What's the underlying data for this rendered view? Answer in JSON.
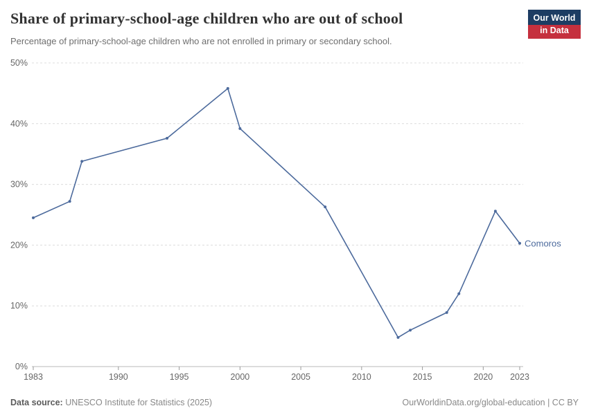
{
  "header": {
    "title": "Share of primary-school-age children who are out of school",
    "subtitle": "Percentage of primary-school-age children who are not enrolled in primary or secondary school."
  },
  "logo": {
    "line1": "Our World",
    "line2": "in Data",
    "bg_color": "#1d3d63",
    "accent_color": "#c5303e"
  },
  "chart_data": {
    "type": "line",
    "title": "Share of primary-school-age children who are out of school",
    "xlabel": "",
    "ylabel": "",
    "xlim": [
      1983,
      2023
    ],
    "ylim": [
      0,
      50
    ],
    "x_ticks": [
      1983,
      1990,
      1995,
      2000,
      2005,
      2010,
      2015,
      2020,
      2023
    ],
    "y_ticks": [
      0,
      10,
      20,
      30,
      40,
      50
    ],
    "y_tick_suffix": "%",
    "grid": "horizontal-dashed",
    "legend_position": "end-of-line-label",
    "series": [
      {
        "name": "Comoros",
        "color": "#4c6a9c",
        "points": [
          [
            1983,
            24.5
          ],
          [
            1986,
            27.2
          ],
          [
            1987,
            33.8
          ],
          [
            1994,
            37.6
          ],
          [
            1999,
            45.8
          ],
          [
            2000,
            39.2
          ],
          [
            2007,
            26.3
          ],
          [
            2013,
            4.8
          ],
          [
            2014,
            6.0
          ],
          [
            2017,
            8.9
          ],
          [
            2018,
            12.0
          ],
          [
            2021,
            25.6
          ],
          [
            2023,
            20.3
          ]
        ]
      }
    ]
  },
  "footer": {
    "source_label": "Data source:",
    "source_text": " UNESCO Institute for Statistics (2025)",
    "credit": "OurWorldinData.org/global-education | CC BY"
  }
}
